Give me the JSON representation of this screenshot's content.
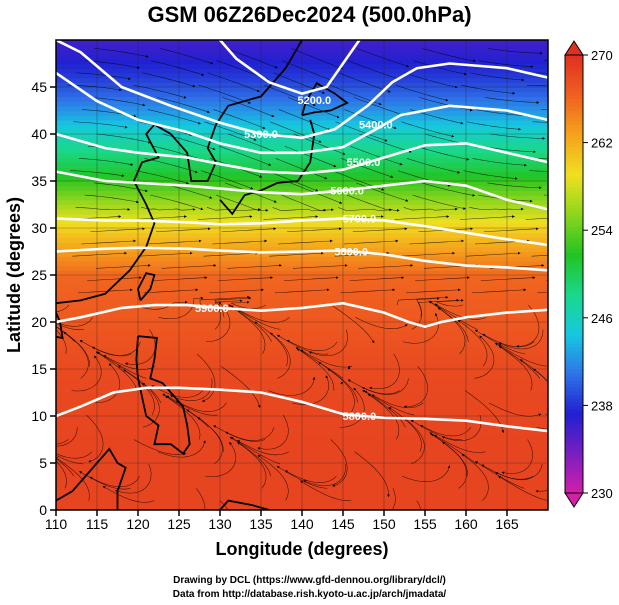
{
  "title": "GSM 06Z26Dec2024 (500.0hPa)",
  "credits": {
    "line1": "Drawing by DCL (https://www.gfd-dennou.org/library/dcl/)",
    "line2": "Data from http://database.rish.kyoto-u.ac.jp/arch/jmadata/"
  },
  "map": {
    "xlabel": "Longitude (degrees)",
    "ylabel": "Latitude  (degrees)",
    "lon_range": [
      110,
      170
    ],
    "lat_range": [
      0,
      50
    ],
    "x_ticks": [
      "110",
      "115",
      "120",
      "125",
      "130",
      "135",
      "140",
      "145",
      "150",
      "155",
      "160",
      "165"
    ],
    "y_ticks": [
      "0",
      "5",
      "10",
      "15",
      "20",
      "25",
      "30",
      "35",
      "40",
      "45"
    ],
    "contour_labels": [
      "5200.0",
      "5300.0",
      "5400.0",
      "5500.0",
      "5600.0",
      "5700.0",
      "5800.0",
      "5900.0",
      "5800.0"
    ],
    "contours": [
      {
        "label": "5200.0",
        "label_lon": 141.5,
        "label_lat": 43.6,
        "points": [
          [
            130,
            50
          ],
          [
            132,
            48
          ],
          [
            136,
            45.5
          ],
          [
            140,
            44.3
          ],
          [
            143,
            45
          ],
          [
            145,
            47.5
          ],
          [
            147,
            50
          ]
        ]
      },
      {
        "label": "5300.0",
        "label_lon": 135,
        "label_lat": 40,
        "points": [
          [
            110,
            50
          ],
          [
            113,
            48.7
          ],
          [
            118,
            45
          ],
          [
            124,
            43
          ],
          [
            130,
            41.2
          ],
          [
            135,
            40
          ],
          [
            140,
            39.6
          ],
          [
            144,
            40.5
          ],
          [
            148,
            43
          ],
          [
            151,
            45.5
          ],
          [
            154,
            47
          ],
          [
            158,
            47.5
          ],
          [
            165,
            47
          ],
          [
            170,
            46
          ]
        ]
      },
      {
        "label": "5400.0",
        "label_lon": 149,
        "label_lat": 41,
        "points": [
          [
            110,
            46.5
          ],
          [
            115,
            43.5
          ],
          [
            120,
            41.5
          ],
          [
            126,
            40.2
          ],
          [
            130,
            39
          ],
          [
            135,
            38
          ],
          [
            140,
            38
          ],
          [
            145,
            38.6
          ],
          [
            149,
            40.5
          ],
          [
            152,
            42
          ],
          [
            158,
            43
          ],
          [
            165,
            42.5
          ],
          [
            170,
            41.5
          ]
        ]
      },
      {
        "label": "5500.0",
        "label_lon": 147.5,
        "label_lat": 37,
        "points": [
          [
            110,
            40
          ],
          [
            116,
            38.5
          ],
          [
            120,
            38
          ],
          [
            126,
            37.5
          ],
          [
            130,
            36.8
          ],
          [
            135,
            36
          ],
          [
            140,
            35.8
          ],
          [
            145,
            36.2
          ],
          [
            150,
            37.5
          ],
          [
            155,
            38.8
          ],
          [
            160,
            39
          ],
          [
            165,
            38
          ],
          [
            170,
            37
          ]
        ]
      },
      {
        "label": "5600.0",
        "label_lon": 145.5,
        "label_lat": 34,
        "points": [
          [
            110,
            36
          ],
          [
            116,
            35
          ],
          [
            120,
            34.8
          ],
          [
            126,
            34.5
          ],
          [
            130,
            34.2
          ],
          [
            135,
            33.8
          ],
          [
            140,
            33.6
          ],
          [
            145,
            34
          ],
          [
            150,
            34.5
          ],
          [
            155,
            35
          ],
          [
            160,
            34.5
          ],
          [
            165,
            33
          ],
          [
            170,
            32
          ]
        ]
      },
      {
        "label": "5700.0",
        "label_lon": 147,
        "label_lat": 31,
        "points": [
          [
            110,
            31
          ],
          [
            116,
            30.8
          ],
          [
            120,
            30.8
          ],
          [
            126,
            30.6
          ],
          [
            130,
            30.4
          ],
          [
            135,
            30.5
          ],
          [
            140,
            30.8
          ],
          [
            145,
            31
          ],
          [
            150,
            30.8
          ],
          [
            155,
            30.2
          ],
          [
            160,
            29.5
          ],
          [
            165,
            28.8
          ],
          [
            170,
            28.2
          ]
        ]
      },
      {
        "label": "5800.0",
        "label_lon": 146,
        "label_lat": 27.5,
        "points": [
          [
            110,
            27.5
          ],
          [
            116,
            27.8
          ],
          [
            120,
            27.9
          ],
          [
            126,
            27.8
          ],
          [
            130,
            27.6
          ],
          [
            135,
            27.4
          ],
          [
            140,
            27.5
          ],
          [
            145,
            27.6
          ],
          [
            150,
            27.2
          ],
          [
            155,
            26.5
          ],
          [
            160,
            26
          ],
          [
            165,
            25.8
          ],
          [
            170,
            25.5
          ]
        ]
      },
      {
        "label": "5900.0",
        "label_lon": 129,
        "label_lat": 21.5,
        "points": [
          [
            110,
            20
          ],
          [
            113,
            20.5
          ],
          [
            118,
            21.5
          ],
          [
            122,
            21.8
          ],
          [
            126,
            21.8
          ],
          [
            130,
            21.5
          ],
          [
            135,
            21.2
          ],
          [
            140,
            21.5
          ],
          [
            145,
            22
          ],
          [
            150,
            21
          ],
          [
            153,
            20
          ],
          [
            155,
            19.5
          ],
          [
            157,
            20
          ],
          [
            160,
            20.5
          ],
          [
            165,
            21
          ],
          [
            170,
            21.3
          ]
        ]
      },
      {
        "label": "5800.0",
        "label_lon": 147,
        "label_lat": 10,
        "points": [
          [
            110,
            10
          ],
          [
            113,
            11
          ],
          [
            117,
            12.5
          ],
          [
            121,
            13
          ],
          [
            125,
            13
          ],
          [
            130,
            12.8
          ],
          [
            135,
            12.5
          ],
          [
            140,
            11.5
          ],
          [
            145,
            10.2
          ],
          [
            150,
            9.8
          ],
          [
            155,
            9.7
          ],
          [
            160,
            9.5
          ],
          [
            165,
            8.9
          ],
          [
            170,
            8.4
          ]
        ]
      }
    ]
  },
  "colorbar": {
    "ticks": [
      "230",
      "238",
      "246",
      "254",
      "262",
      "270"
    ],
    "range": [
      230,
      270
    ],
    "colors": [
      "#d41fa8",
      "#7a1fc0",
      "#2020d0",
      "#2f74e8",
      "#16c8e0",
      "#1ad88a",
      "#22c322",
      "#8cd61c",
      "#f0e020",
      "#f5a31c",
      "#f06020",
      "#e03020"
    ]
  },
  "field": {
    "temperature_by_lat": [
      [
        0,
        268.5
      ],
      [
        5,
        268.5
      ],
      [
        10,
        268.3
      ],
      [
        15,
        268
      ],
      [
        20,
        267
      ],
      [
        25,
        266
      ],
      [
        28,
        262.5
      ],
      [
        30,
        260
      ],
      [
        32,
        257
      ],
      [
        34,
        254
      ],
      [
        36,
        251
      ],
      [
        38,
        248.5
      ],
      [
        40,
        246
      ],
      [
        42,
        243
      ],
      [
        44,
        240.5
      ],
      [
        46,
        238.5
      ],
      [
        48,
        237
      ],
      [
        50,
        236
      ]
    ]
  }
}
